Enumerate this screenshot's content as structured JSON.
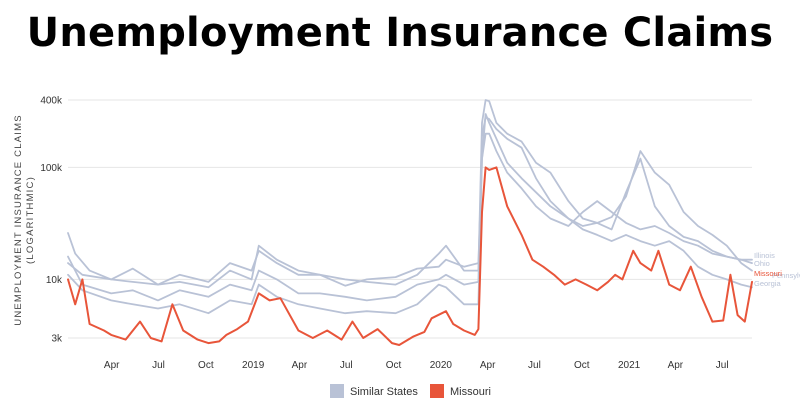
{
  "title": "Unemployment Insurance Claims",
  "chart_data": {
    "type": "line",
    "title": "Unemployment Insurance Claims",
    "xlabel": "",
    "ylabel": "UNEMPLOYMENT INSURANCE CLAIMS (LOGARITHMIC)",
    "y_scale": "log",
    "ylim": [
      2500,
      420000
    ],
    "y_ticks": [
      3000,
      10000,
      100000,
      400000
    ],
    "y_tick_labels": [
      "3k",
      "10k",
      "100k",
      "400k"
    ],
    "xlim": [
      "2018-01-06",
      "2021-08-28"
    ],
    "x_ticks": [
      {
        "date": "2018-04-01",
        "label": "Apr"
      },
      {
        "date": "2018-07-01",
        "label": "Jul"
      },
      {
        "date": "2018-10-01",
        "label": "Oct"
      },
      {
        "date": "2019-01-01",
        "label": "2019"
      },
      {
        "date": "2019-04-01",
        "label": "Apr"
      },
      {
        "date": "2019-07-01",
        "label": "Jul"
      },
      {
        "date": "2019-10-01",
        "label": "Oct"
      },
      {
        "date": "2020-01-01",
        "label": "2020"
      },
      {
        "date": "2020-04-01",
        "label": "Apr"
      },
      {
        "date": "2020-07-01",
        "label": "Jul"
      },
      {
        "date": "2020-10-01",
        "label": "Oct"
      },
      {
        "date": "2021-01-01",
        "label": "2021"
      },
      {
        "date": "2021-04-01",
        "label": "Apr"
      },
      {
        "date": "2021-07-01",
        "label": "Jul"
      }
    ],
    "grid": {
      "horizontal": true,
      "vertical": false
    },
    "legend": {
      "position": "bottom",
      "items": [
        {
          "label": "Similar States",
          "color": "#b9c2d6"
        },
        {
          "label": "Missouri",
          "color": "#e8553a"
        }
      ]
    },
    "colors": {
      "similar": "#b9c2d6",
      "missouri": "#e8553a"
    },
    "series": [
      {
        "name": "Illinois",
        "group": "Similar States",
        "color": "#b9c2d6",
        "points": [
          [
            "2018-01-06",
            26000
          ],
          [
            "2018-01-20",
            17000
          ],
          [
            "2018-02-17",
            12000
          ],
          [
            "2018-03-31",
            10000
          ],
          [
            "2018-05-12",
            12500
          ],
          [
            "2018-06-30",
            9000
          ],
          [
            "2018-08-11",
            11000
          ],
          [
            "2018-10-06",
            9500
          ],
          [
            "2018-11-17",
            14000
          ],
          [
            "2018-12-29",
            12000
          ],
          [
            "2019-01-12",
            18000
          ],
          [
            "2019-02-16",
            14000
          ],
          [
            "2019-03-30",
            11000
          ],
          [
            "2019-05-11",
            11000
          ],
          [
            "2019-06-29",
            8800
          ],
          [
            "2019-08-10",
            10000
          ],
          [
            "2019-10-05",
            10500
          ],
          [
            "2019-11-16",
            12500
          ],
          [
            "2019-12-28",
            13000
          ],
          [
            "2020-01-11",
            15000
          ],
          [
            "2020-02-15",
            13000
          ],
          [
            "2020-03-14",
            14000
          ],
          [
            "2020-03-21",
            120000
          ],
          [
            "2020-03-28",
            200000
          ],
          [
            "2020-04-04",
            200000
          ],
          [
            "2020-04-18",
            140000
          ],
          [
            "2020-05-09",
            90000
          ],
          [
            "2020-06-06",
            65000
          ],
          [
            "2020-07-04",
            45000
          ],
          [
            "2020-08-01",
            35000
          ],
          [
            "2020-09-05",
            30000
          ],
          [
            "2020-10-03",
            40000
          ],
          [
            "2020-10-31",
            50000
          ],
          [
            "2020-11-28",
            40000
          ],
          [
            "2020-12-26",
            32000
          ],
          [
            "2021-01-23",
            28000
          ],
          [
            "2021-02-20",
            30000
          ],
          [
            "2021-03-20",
            26000
          ],
          [
            "2021-04-17",
            22000
          ],
          [
            "2021-05-15",
            20000
          ],
          [
            "2021-06-12",
            17000
          ],
          [
            "2021-07-10",
            16000
          ],
          [
            "2021-08-07",
            15000
          ],
          [
            "2021-08-28",
            15000
          ]
        ]
      },
      {
        "name": "Ohio",
        "group": "Similar States",
        "color": "#b9c2d6",
        "points": [
          [
            "2018-01-06",
            16000
          ],
          [
            "2018-02-03",
            9000
          ],
          [
            "2018-03-31",
            7500
          ],
          [
            "2018-05-12",
            8000
          ],
          [
            "2018-06-30",
            6500
          ],
          [
            "2018-08-11",
            8000
          ],
          [
            "2018-10-06",
            7000
          ],
          [
            "2018-11-17",
            9000
          ],
          [
            "2018-12-29",
            8000
          ],
          [
            "2019-01-12",
            12000
          ],
          [
            "2019-02-16",
            10000
          ],
          [
            "2019-03-30",
            7500
          ],
          [
            "2019-05-11",
            7500
          ],
          [
            "2019-06-29",
            7000
          ],
          [
            "2019-08-10",
            6500
          ],
          [
            "2019-10-05",
            7000
          ],
          [
            "2019-11-16",
            9000
          ],
          [
            "2019-12-28",
            10000
          ],
          [
            "2020-01-11",
            11000
          ],
          [
            "2020-02-15",
            9000
          ],
          [
            "2020-03-14",
            9500
          ],
          [
            "2020-03-21",
            190000
          ],
          [
            "2020-03-28",
            280000
          ],
          [
            "2020-04-04",
            270000
          ],
          [
            "2020-04-18",
            220000
          ],
          [
            "2020-05-09",
            180000
          ],
          [
            "2020-06-06",
            150000
          ],
          [
            "2020-07-04",
            80000
          ],
          [
            "2020-08-01",
            50000
          ],
          [
            "2020-09-05",
            35000
          ],
          [
            "2020-10-03",
            30000
          ],
          [
            "2020-10-31",
            32000
          ],
          [
            "2020-11-28",
            28000
          ],
          [
            "2020-12-26",
            60000
          ],
          [
            "2021-01-23",
            120000
          ],
          [
            "2021-02-20",
            45000
          ],
          [
            "2021-03-20",
            30000
          ],
          [
            "2021-04-17",
            24000
          ],
          [
            "2021-05-15",
            22000
          ],
          [
            "2021-06-12",
            18000
          ],
          [
            "2021-07-10",
            16000
          ],
          [
            "2021-08-07",
            15000
          ],
          [
            "2021-08-28",
            14000
          ]
        ]
      },
      {
        "name": "Pennsylvania",
        "group": "Similar States",
        "color": "#b9c2d6",
        "points": [
          [
            "2018-01-06",
            14000
          ],
          [
            "2018-02-03",
            11000
          ],
          [
            "2018-03-31",
            10000
          ],
          [
            "2018-05-12",
            9500
          ],
          [
            "2018-06-30",
            9000
          ],
          [
            "2018-08-11",
            9500
          ],
          [
            "2018-10-06",
            8500
          ],
          [
            "2018-11-17",
            12000
          ],
          [
            "2018-12-29",
            10000
          ],
          [
            "2019-01-12",
            20000
          ],
          [
            "2019-02-16",
            15000
          ],
          [
            "2019-03-30",
            12000
          ],
          [
            "2019-05-11",
            11000
          ],
          [
            "2019-06-29",
            10000
          ],
          [
            "2019-08-10",
            9500
          ],
          [
            "2019-10-05",
            9000
          ],
          [
            "2019-11-16",
            11000
          ],
          [
            "2019-12-28",
            17000
          ],
          [
            "2020-01-11",
            20000
          ],
          [
            "2020-02-15",
            12000
          ],
          [
            "2020-03-14",
            12000
          ],
          [
            "2020-03-21",
            250000
          ],
          [
            "2020-03-28",
            400000
          ],
          [
            "2020-04-04",
            390000
          ],
          [
            "2020-04-18",
            250000
          ],
          [
            "2020-05-09",
            200000
          ],
          [
            "2020-06-06",
            170000
          ],
          [
            "2020-07-04",
            110000
          ],
          [
            "2020-08-01",
            90000
          ],
          [
            "2020-09-05",
            50000
          ],
          [
            "2020-10-03",
            35000
          ],
          [
            "2020-10-31",
            32000
          ],
          [
            "2020-11-28",
            36000
          ],
          [
            "2020-12-26",
            55000
          ],
          [
            "2021-01-23",
            140000
          ],
          [
            "2021-02-20",
            90000
          ],
          [
            "2021-03-20",
            70000
          ],
          [
            "2021-04-17",
            40000
          ],
          [
            "2021-05-15",
            30000
          ],
          [
            "2021-06-12",
            25000
          ],
          [
            "2021-07-10",
            20000
          ],
          [
            "2021-08-07",
            14000
          ],
          [
            "2021-08-28",
            12000
          ]
        ]
      },
      {
        "name": "Georgia",
        "group": "Similar States",
        "color": "#b9c2d6",
        "points": [
          [
            "2018-01-06",
            11000
          ],
          [
            "2018-02-03",
            8000
          ],
          [
            "2018-03-31",
            6500
          ],
          [
            "2018-05-12",
            6000
          ],
          [
            "2018-06-30",
            5500
          ],
          [
            "2018-08-11",
            6000
          ],
          [
            "2018-10-06",
            5000
          ],
          [
            "2018-11-17",
            6500
          ],
          [
            "2018-12-29",
            6000
          ],
          [
            "2019-01-12",
            9000
          ],
          [
            "2019-02-16",
            7000
          ],
          [
            "2019-03-30",
            6000
          ],
          [
            "2019-05-11",
            5500
          ],
          [
            "2019-06-29",
            5000
          ],
          [
            "2019-08-10",
            5200
          ],
          [
            "2019-10-05",
            5000
          ],
          [
            "2019-11-16",
            6000
          ],
          [
            "2019-12-28",
            9000
          ],
          [
            "2020-01-11",
            8500
          ],
          [
            "2020-02-15",
            6000
          ],
          [
            "2020-03-14",
            6000
          ],
          [
            "2020-03-21",
            120000
          ],
          [
            "2020-03-28",
            300000
          ],
          [
            "2020-04-04",
            250000
          ],
          [
            "2020-04-18",
            180000
          ],
          [
            "2020-05-09",
            110000
          ],
          [
            "2020-06-06",
            80000
          ],
          [
            "2020-07-04",
            60000
          ],
          [
            "2020-08-01",
            45000
          ],
          [
            "2020-09-05",
            35000
          ],
          [
            "2020-10-03",
            28000
          ],
          [
            "2020-10-31",
            25000
          ],
          [
            "2020-11-28",
            22000
          ],
          [
            "2020-12-26",
            25000
          ],
          [
            "2021-01-23",
            22000
          ],
          [
            "2021-02-20",
            20000
          ],
          [
            "2021-03-20",
            22000
          ],
          [
            "2021-04-17",
            18000
          ],
          [
            "2021-05-15",
            13000
          ],
          [
            "2021-06-12",
            11000
          ],
          [
            "2021-07-10",
            10000
          ],
          [
            "2021-08-07",
            9000
          ],
          [
            "2021-08-28",
            8500
          ]
        ]
      },
      {
        "name": "Missouri",
        "group": "Missouri",
        "color": "#e8553a",
        "points": [
          [
            "2018-01-06",
            10000
          ],
          [
            "2018-01-20",
            6000
          ],
          [
            "2018-02-03",
            10000
          ],
          [
            "2018-02-17",
            4000
          ],
          [
            "2018-03-17",
            3500
          ],
          [
            "2018-03-31",
            3200
          ],
          [
            "2018-04-28",
            2900
          ],
          [
            "2018-05-26",
            4200
          ],
          [
            "2018-06-16",
            3000
          ],
          [
            "2018-07-07",
            2800
          ],
          [
            "2018-07-28",
            6000
          ],
          [
            "2018-08-18",
            3500
          ],
          [
            "2018-09-15",
            2900
          ],
          [
            "2018-10-06",
            2700
          ],
          [
            "2018-10-27",
            2800
          ],
          [
            "2018-11-10",
            3200
          ],
          [
            "2018-12-01",
            3600
          ],
          [
            "2018-12-22",
            4200
          ],
          [
            "2019-01-12",
            7500
          ],
          [
            "2019-02-02",
            6500
          ],
          [
            "2019-02-23",
            6800
          ],
          [
            "2019-03-30",
            3500
          ],
          [
            "2019-04-27",
            3000
          ],
          [
            "2019-05-25",
            3500
          ],
          [
            "2019-06-22",
            2900
          ],
          [
            "2019-07-13",
            4200
          ],
          [
            "2019-08-03",
            3000
          ],
          [
            "2019-08-31",
            3600
          ],
          [
            "2019-09-28",
            2700
          ],
          [
            "2019-10-12",
            2600
          ],
          [
            "2019-11-09",
            3100
          ],
          [
            "2019-11-30",
            3400
          ],
          [
            "2019-12-14",
            4500
          ],
          [
            "2020-01-11",
            5200
          ],
          [
            "2020-01-25",
            4000
          ],
          [
            "2020-02-15",
            3500
          ],
          [
            "2020-03-07",
            3200
          ],
          [
            "2020-03-14",
            3600
          ],
          [
            "2020-03-21",
            40000
          ],
          [
            "2020-03-28",
            100000
          ],
          [
            "2020-04-04",
            95000
          ],
          [
            "2020-04-18",
            100000
          ],
          [
            "2020-05-09",
            45000
          ],
          [
            "2020-06-06",
            25000
          ],
          [
            "2020-06-27",
            15000
          ],
          [
            "2020-07-18",
            13000
          ],
          [
            "2020-08-08",
            11000
          ],
          [
            "2020-08-29",
            9000
          ],
          [
            "2020-09-19",
            10000
          ],
          [
            "2020-10-10",
            9000
          ],
          [
            "2020-10-31",
            8000
          ],
          [
            "2020-11-21",
            9500
          ],
          [
            "2020-12-05",
            11000
          ],
          [
            "2020-12-19",
            10000
          ],
          [
            "2021-01-09",
            18000
          ],
          [
            "2021-01-23",
            14000
          ],
          [
            "2021-02-13",
            12000
          ],
          [
            "2021-02-27",
            18000
          ],
          [
            "2021-03-20",
            9000
          ],
          [
            "2021-04-10",
            8000
          ],
          [
            "2021-05-01",
            13000
          ],
          [
            "2021-05-22",
            7000
          ],
          [
            "2021-06-12",
            4200
          ],
          [
            "2021-07-03",
            4300
          ],
          [
            "2021-07-17",
            11000
          ],
          [
            "2021-07-31",
            4800
          ],
          [
            "2021-08-14",
            4200
          ],
          [
            "2021-08-28",
            9500
          ]
        ]
      }
    ]
  }
}
